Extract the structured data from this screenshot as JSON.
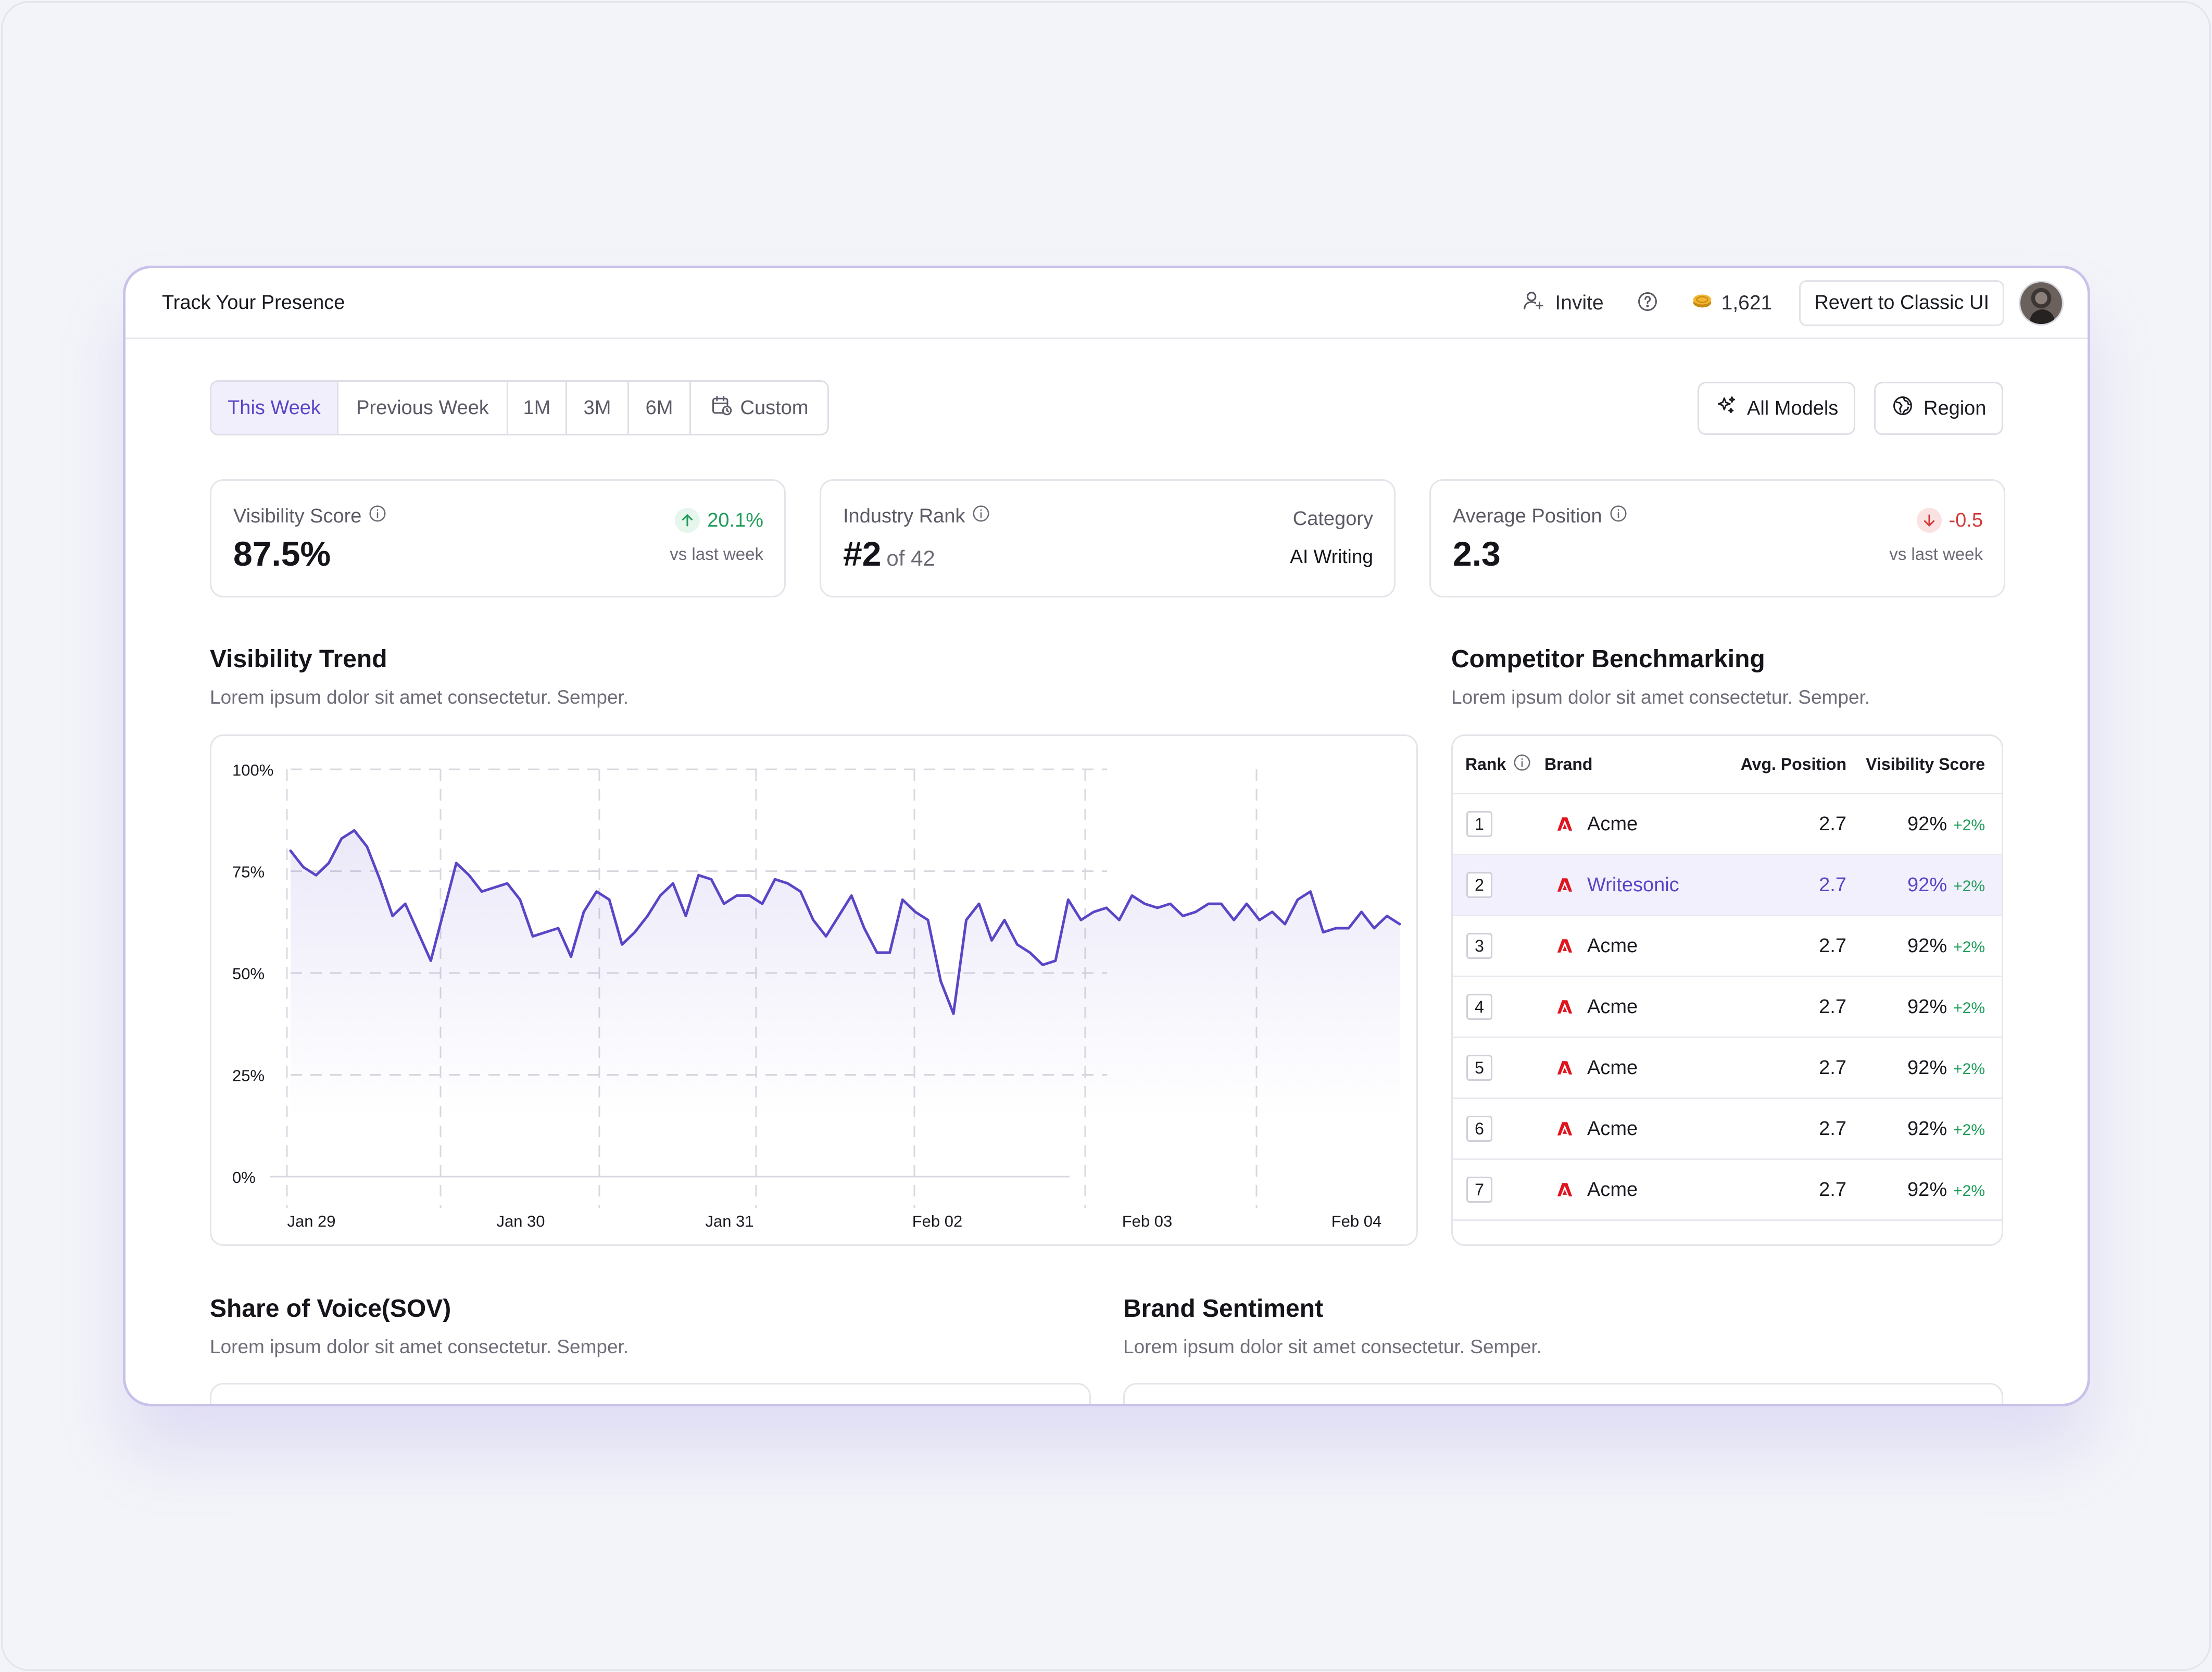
{
  "header": {
    "title": "Track Your Presence",
    "invite_label": "Invite",
    "credits": "1,621",
    "revert_label": "Revert to Classic UI"
  },
  "filters": {
    "ranges": [
      "This Week",
      "Previous Week",
      "1M",
      "3M",
      "6M",
      "Custom"
    ],
    "active": "This Week",
    "models_label": "All Models",
    "region_label": "Region"
  },
  "stats": {
    "visibility": {
      "label": "Visibility Score",
      "value": "87.5%",
      "delta": "20.1%",
      "delta_note": "vs last week",
      "direction": "up"
    },
    "rank": {
      "label": "Industry Rank",
      "value": "#2",
      "of": "of 42",
      "category_label": "Category",
      "category_value": "AI Writing"
    },
    "position": {
      "label": "Average Position",
      "value": "2.3",
      "delta": "-0.5",
      "delta_note": "vs last week",
      "direction": "down"
    }
  },
  "trend": {
    "title": "Visibility Trend",
    "subtitle": "Lorem ipsum dolor sit amet consectetur. Semper."
  },
  "chart_data": {
    "type": "area",
    "title": "Visibility Trend",
    "xlabel": "",
    "ylabel": "",
    "ylim": [
      0,
      100
    ],
    "yticks": [
      "100%",
      "75%",
      "50%",
      "25%",
      "0%"
    ],
    "xticks": [
      "Jan 29",
      "Jan 30",
      "Jan 31",
      "Feb 02",
      "Feb 03",
      "Feb 04"
    ],
    "grid": true,
    "color": "#5b45c6",
    "series": [
      {
        "values": [
          80,
          76,
          74,
          77,
          83,
          85,
          81,
          73,
          64,
          67,
          60,
          53,
          65,
          77,
          74,
          70,
          71,
          72,
          68,
          59,
          60,
          61,
          54,
          65,
          70,
          68,
          57,
          60,
          64,
          69,
          72,
          64,
          74,
          73,
          67,
          69,
          69,
          67,
          73,
          72,
          70,
          63,
          59,
          64,
          69,
          61,
          55,
          55,
          68,
          65,
          63,
          48,
          40,
          63,
          67,
          58,
          63,
          57,
          55,
          52,
          53,
          68,
          63,
          65,
          66,
          63,
          69,
          67,
          66,
          67,
          64,
          65,
          67,
          67,
          63,
          67,
          63,
          65,
          62,
          68,
          70,
          60,
          61,
          61,
          65,
          61,
          64,
          62
        ]
      }
    ]
  },
  "benchmark": {
    "title": "Competitor Benchmarking",
    "subtitle": "Lorem ipsum dolor sit amet consectetur. Semper.",
    "columns": [
      "Rank",
      "Brand",
      "Avg. Position",
      "Visibility Score"
    ],
    "rows": [
      {
        "rank": "1",
        "brand": "Acme",
        "position": "2.7",
        "score": "92%",
        "delta": "+2%"
      },
      {
        "rank": "2",
        "brand": "Writesonic",
        "position": "2.7",
        "score": "92%",
        "delta": "+2%"
      },
      {
        "rank": "3",
        "brand": "Acme",
        "position": "2.7",
        "score": "92%",
        "delta": "+2%"
      },
      {
        "rank": "4",
        "brand": "Acme",
        "position": "2.7",
        "score": "92%",
        "delta": "+2%"
      },
      {
        "rank": "5",
        "brand": "Acme",
        "position": "2.7",
        "score": "92%",
        "delta": "+2%"
      },
      {
        "rank": "6",
        "brand": "Acme",
        "position": "2.7",
        "score": "92%",
        "delta": "+2%"
      },
      {
        "rank": "7",
        "brand": "Acme",
        "position": "2.7",
        "score": "92%",
        "delta": "+2%"
      }
    ]
  },
  "sov": {
    "title": "Share of Voice(SOV)",
    "subtitle": "Lorem ipsum dolor sit amet consectetur. Semper."
  },
  "sentiment": {
    "title": "Brand Sentiment",
    "subtitle": "Lorem ipsum dolor sit amet consectetur. Semper."
  }
}
